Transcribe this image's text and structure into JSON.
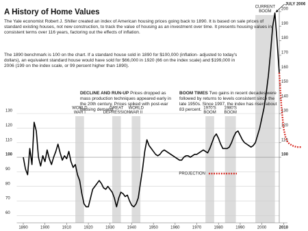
{
  "chart_data": {
    "type": "line",
    "title": "A History of Home Values",
    "description": [
      "The Yale economist Robert J. Shiller created an index of American housing prices going back to 1890. It is based on sale prices of standard existing houses, not new construction, to track the value of housing as an investment over time. It presents housing values in consistent terms over 116 years, factoring out the effects of inflation.",
      "The 1890 benchmark is 100 on the chart. If a standard house sold in 1890 for $100,000 (inflation- adjusted to today's dollars), an equivalent standard house would have sold for $66,000 in 1920 (66 on the index scale) and $199,000 in 2006 (199 on the index scale, or 99 percent higher than 1890)."
    ],
    "annotations": [
      {
        "heading": "DECLINE AND RUN-UP",
        "text": "Prices dropped as mass production techniques appeared early in the 20th century. Prices spiked with post-war housing demand."
      },
      {
        "heading": "BOOM TIMES",
        "text": "Two gains in recent decades were followed by returns to levels consistent since the late 1950s. Since 1997, the index has risen about 83 percent."
      }
    ],
    "callout": "JULY 2006",
    "periods": [
      {
        "label": [
          "WORLD",
          "WAR I"
        ],
        "start": 1914,
        "end": 1918
      },
      {
        "label": [
          "GREAT",
          "DEPRESSION"
        ],
        "start": 1931,
        "end": 1935
      },
      {
        "label": [
          "WORLD",
          "WAR II"
        ],
        "start": 1940,
        "end": 1944
      },
      {
        "label": [
          "1970'S",
          "BOOM"
        ],
        "start": 1974,
        "end": 1978
      },
      {
        "label": [
          "1980'S",
          "BOOM"
        ],
        "start": 1983,
        "end": 1988
      },
      {
        "label": [
          "CURRENT",
          "BOOM"
        ],
        "start": 1997,
        "end": 2006
      }
    ],
    "series": [
      {
        "color": "#000000",
        "x": [
          1890,
          1891,
          1892,
          1893,
          1894,
          1895,
          1896,
          1897,
          1898,
          1899,
          1900,
          1901,
          1902,
          1903,
          1904,
          1905,
          1906,
          1907,
          1908,
          1909,
          1910,
          1911,
          1912,
          1913,
          1914,
          1915,
          1916,
          1917,
          1918,
          1919,
          1920,
          1921,
          1922,
          1923,
          1924,
          1925,
          1926,
          1927,
          1928,
          1929,
          1930,
          1931,
          1932,
          1933,
          1934,
          1935,
          1936,
          1937,
          1938,
          1939,
          1940,
          1941,
          1942,
          1943,
          1944,
          1945,
          1946,
          1947,
          1948,
          1949,
          1950,
          1951,
          1952,
          1953,
          1954,
          1955,
          1956,
          1957,
          1958,
          1959,
          1960,
          1961,
          1962,
          1963,
          1964,
          1965,
          1966,
          1967,
          1968,
          1969,
          1970,
          1971,
          1972,
          1973,
          1974,
          1975,
          1976,
          1977,
          1978,
          1979,
          1980,
          1981,
          1982,
          1983,
          1984,
          1985,
          1986,
          1987,
          1988,
          1989,
          1990,
          1991,
          1992,
          1993,
          1994,
          1995,
          1996,
          1997,
          1998,
          1999,
          2000,
          2001,
          2002,
          2003,
          2004,
          2005,
          2006,
          2007,
          2008
        ],
        "values": [
          100,
          92,
          88,
          106,
          95,
          124,
          118,
          100,
          94,
          101,
          97,
          105,
          99,
          95,
          100,
          104,
          109,
          103,
          98,
          101,
          99,
          104,
          97,
          93,
          95,
          88,
          84,
          75,
          68,
          66,
          66,
          72,
          78,
          80,
          82,
          84,
          82,
          79,
          78,
          80,
          78,
          76,
          72,
          66,
          72,
          76,
          75,
          73,
          74,
          70,
          67,
          66,
          68,
          72,
          82,
          92,
          104,
          112,
          108,
          106,
          104,
          102,
          101,
          102,
          104,
          105,
          104,
          103,
          102,
          101,
          100,
          99,
          98,
          98,
          100,
          101,
          101,
          100,
          101,
          102,
          102,
          103,
          104,
          105,
          104,
          103,
          106,
          110,
          114,
          116,
          113,
          109,
          106,
          106,
          106,
          107,
          110,
          114,
          117,
          118,
          115,
          112,
          110,
          109,
          108,
          107,
          108,
          110,
          115,
          120,
          127,
          134,
          144,
          156,
          172,
          190,
          199,
          180,
          158
        ]
      },
      {
        "name": "PROJECTION",
        "color": "#d7261e",
        "style": "dotted",
        "x": [
          2008,
          2009,
          2010,
          2011,
          2012,
          2014,
          2016,
          2018
        ],
        "values": [
          158,
          135,
          120,
          113,
          110,
          108,
          107,
          107
        ]
      }
    ],
    "xlim": [
      1887,
      2020
    ],
    "xticks": [
      1890,
      1900,
      1910,
      1920,
      1930,
      1940,
      1950,
      1960,
      1970,
      1980,
      1990,
      2000,
      2010
    ],
    "ylim": [
      55,
      207
    ],
    "yticks": [
      60,
      70,
      80,
      90,
      100,
      110,
      120,
      130
    ],
    "y2lim": [
      55,
      207
    ],
    "y2ticks": [
      100,
      110,
      120,
      130,
      140,
      150,
      160,
      170,
      180,
      190,
      200
    ],
    "grid": true
  }
}
